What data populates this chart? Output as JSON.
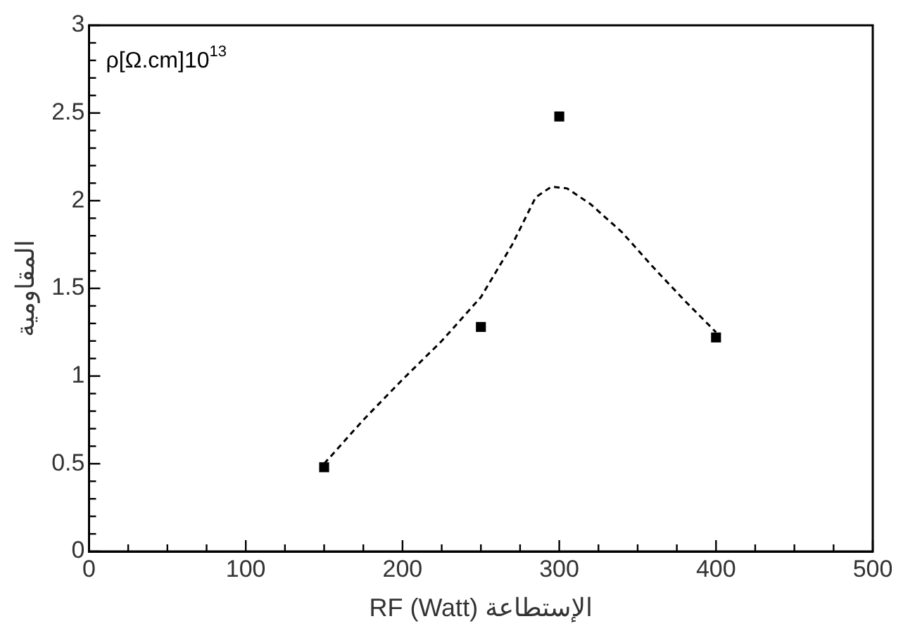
{
  "chart_data": {
    "type": "scatter",
    "xlabel": "RF (Watt) الإستطاعة",
    "ylabel": "المقاومية",
    "annotations": [
      "ρ[Ω.cm]10$^{13}$"
    ],
    "series": [
      {
        "type": "scatter",
        "color": "#000000",
        "marker": "square",
        "x": [
          150,
          250,
          300,
          400
        ],
        "values": [
          0.48,
          1.28,
          2.48,
          1.22
        ]
      },
      {
        "type": "line",
        "color": "#000000",
        "marker": "none",
        "line_style": "dashed",
        "x": [
          150,
          175,
          200,
          225,
          250,
          270,
          285,
          295,
          305,
          320,
          340,
          360,
          380,
          400
        ],
        "values": [
          0.5,
          0.75,
          0.98,
          1.2,
          1.45,
          1.75,
          2.02,
          2.08,
          2.07,
          1.98,
          1.82,
          1.62,
          1.43,
          1.25
        ]
      }
    ],
    "xlim": [
      0,
      500
    ],
    "ylim": [
      0,
      3
    ],
    "xticks": [
      0,
      {
        "value": 25,
        "label": null
      },
      {
        "value": 50,
        "label": null
      },
      {
        "value": 75,
        "label": null
      },
      100,
      {
        "value": 125,
        "label": null
      },
      {
        "value": 150,
        "label": null
      },
      {
        "value": 175,
        "label": null
      },
      200,
      {
        "value": 225,
        "label": null
      },
      {
        "value": 250,
        "label": null
      },
      {
        "value": 275,
        "label": null
      },
      300,
      {
        "value": 325,
        "label": null
      },
      {
        "value": 350,
        "label": null
      },
      {
        "value": 375,
        "label": null
      },
      400,
      {
        "value": 425,
        "label": null
      },
      {
        "value": 450,
        "label": null
      },
      {
        "value": 475,
        "label": null
      },
      500
    ],
    "yticks": [
      0,
      {
        "value": 0.1,
        "label": null
      },
      {
        "value": 0.2,
        "label": null
      },
      {
        "value": 0.3,
        "label": null
      },
      {
        "value": 0.4,
        "label": null
      },
      0.5,
      {
        "value": 0.6,
        "label": null
      },
      {
        "value": 0.7,
        "label": null
      },
      {
        "value": 0.8,
        "label": null
      },
      {
        "value": 0.9,
        "label": null
      },
      1,
      {
        "value": 1.1,
        "label": null
      },
      {
        "value": 1.2,
        "label": null
      },
      {
        "value": 1.3,
        "label": null
      },
      {
        "value": 1.4,
        "label": null
      },
      1.5,
      {
        "value": 1.6,
        "label": null
      },
      {
        "value": 1.7,
        "label": null
      },
      {
        "value": 1.8,
        "label": null
      },
      {
        "value": 1.9,
        "label": null
      },
      2,
      {
        "value": 2.1,
        "label": null
      },
      {
        "value": 2.2,
        "label": null
      },
      {
        "value": 2.3,
        "label": null
      },
      {
        "value": 2.4,
        "label": null
      },
      2.5,
      {
        "value": 2.6,
        "label": null
      },
      {
        "value": 2.7,
        "label": null
      },
      {
        "value": 2.8,
        "label": null
      },
      {
        "value": 2.9,
        "label": null
      },
      3
    ],
    "grid": false,
    "legend": false
  }
}
